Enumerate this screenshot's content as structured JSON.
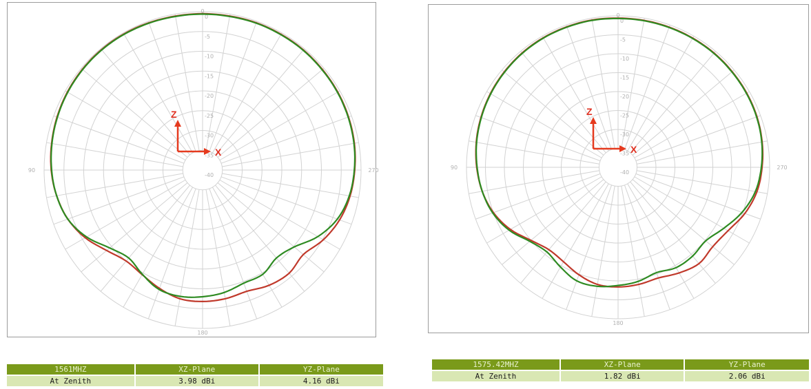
{
  "colors": {
    "xz_curve": "#c0392b",
    "yz_curve": "#2e8b22",
    "grid": "#d2d2d2",
    "axes_arrow": "#e53a1e",
    "table_header": "#7a9a1a",
    "table_row": "#d9e7b3"
  },
  "chart_data": [
    {
      "type": "polar-line",
      "frequency": "1561MHZ",
      "angle_labels": [
        "0",
        "90",
        "180",
        "270"
      ],
      "radial_tick_labels": [
        "0",
        "-5",
        "-10",
        "-15",
        "-20",
        "-25",
        "-30",
        "-35",
        "-40"
      ],
      "rlim": [
        -40,
        0
      ],
      "axis_markers": {
        "vertical": "Z",
        "horizontal": "X"
      },
      "series": [
        {
          "name": "XZ-Plane",
          "color": "#c0392b",
          "theta_deg": [
            0,
            10,
            20,
            30,
            40,
            50,
            60,
            70,
            80,
            90,
            100,
            110,
            120,
            130,
            140,
            150,
            160,
            170,
            180,
            190,
            200,
            210,
            220,
            230,
            240,
            250,
            260,
            270,
            280,
            290,
            300,
            310,
            320,
            330,
            340,
            350
          ],
          "gain_db": [
            -0.5,
            -0.5,
            -0.4,
            -0.3,
            -0.3,
            -0.4,
            -0.6,
            -0.9,
            -1.3,
            -1.8,
            -2.6,
            -3.8,
            -5.8,
            -8.4,
            -10.0,
            -9.5,
            -8.2,
            -7.0,
            -6.8,
            -7.0,
            -7.4,
            -6.4,
            -6.0,
            -6.8,
            -4.8,
            -3.2,
            -2.2,
            -1.6,
            -1.1,
            -0.8,
            -0.6,
            -0.5,
            -0.4,
            -0.4,
            -0.4,
            -0.5
          ]
        },
        {
          "name": "YZ-Plane",
          "color": "#2e8b22",
          "theta_deg": [
            0,
            10,
            20,
            30,
            40,
            50,
            60,
            70,
            80,
            90,
            100,
            110,
            120,
            130,
            140,
            150,
            160,
            170,
            180,
            190,
            200,
            210,
            220,
            230,
            240,
            250,
            260,
            270,
            280,
            290,
            300,
            310,
            320,
            330,
            340,
            350
          ],
          "gain_db": [
            -0.6,
            -0.6,
            -0.5,
            -0.4,
            -0.4,
            -0.5,
            -0.7,
            -1.0,
            -1.4,
            -1.9,
            -2.6,
            -3.8,
            -6.2,
            -9.4,
            -11.0,
            -9.6,
            -7.9,
            -7.6,
            -8.0,
            -8.6,
            -9.6,
            -9.6,
            -11.0,
            -9.8,
            -6.4,
            -3.8,
            -2.4,
            -1.7,
            -1.2,
            -0.9,
            -0.7,
            -0.6,
            -0.5,
            -0.5,
            -0.5,
            -0.6
          ]
        }
      ]
    },
    {
      "type": "polar-line",
      "frequency": "1575.42MHZ",
      "angle_labels": [
        "0",
        "90",
        "180",
        "270"
      ],
      "radial_tick_labels": [
        "0",
        "-5",
        "-10",
        "-15",
        "-20",
        "-25",
        "-30",
        "-35",
        "-40"
      ],
      "rlim": [
        -40,
        0
      ],
      "axis_markers": {
        "vertical": "Z",
        "horizontal": "X"
      },
      "series": [
        {
          "name": "XZ-Plane",
          "color": "#c0392b",
          "theta_deg": [
            0,
            10,
            20,
            30,
            40,
            50,
            60,
            70,
            80,
            90,
            100,
            110,
            120,
            130,
            140,
            150,
            160,
            170,
            180,
            190,
            200,
            210,
            220,
            230,
            240,
            250,
            260,
            270,
            280,
            290,
            300,
            310,
            320,
            330,
            340,
            350
          ],
          "gain_db": [
            -0.6,
            -0.5,
            -0.5,
            -0.5,
            -0.6,
            -0.8,
            -1.1,
            -1.5,
            -2.0,
            -2.7,
            -3.6,
            -5.0,
            -7.2,
            -10.0,
            -11.6,
            -11.2,
            -9.8,
            -8.6,
            -8.4,
            -8.6,
            -8.9,
            -7.8,
            -6.8,
            -7.4,
            -6.5,
            -4.4,
            -2.8,
            -2.0,
            -1.4,
            -1.0,
            -0.8,
            -0.7,
            -0.6,
            -0.6,
            -0.6,
            -0.6
          ]
        },
        {
          "name": "YZ-Plane",
          "color": "#2e8b22",
          "theta_deg": [
            0,
            10,
            20,
            30,
            40,
            50,
            60,
            70,
            80,
            90,
            100,
            110,
            120,
            130,
            140,
            150,
            160,
            170,
            180,
            190,
            200,
            210,
            220,
            230,
            240,
            250,
            260,
            270,
            280,
            290,
            300,
            310,
            320,
            330,
            340,
            350
          ],
          "gain_db": [
            -0.7,
            -0.6,
            -0.6,
            -0.6,
            -0.7,
            -0.9,
            -1.2,
            -1.6,
            -2.1,
            -2.8,
            -3.6,
            -4.8,
            -6.8,
            -9.6,
            -10.8,
            -9.6,
            -8.1,
            -8.1,
            -8.8,
            -9.4,
            -10.4,
            -9.4,
            -9.4,
            -9.8,
            -7.8,
            -5.2,
            -3.2,
            -2.2,
            -1.5,
            -1.1,
            -0.9,
            -0.8,
            -0.7,
            -0.7,
            -0.7,
            -0.7
          ]
        }
      ]
    }
  ],
  "tables": [
    {
      "headers": [
        "1561MHZ",
        "XZ-Plane",
        "YZ-Plane"
      ],
      "row": [
        "At Zenith",
        "3.98 dBi",
        "4.16 dBi"
      ]
    },
    {
      "headers": [
        "1575.42MHZ",
        "XZ-Plane",
        "YZ-Plane"
      ],
      "row": [
        "At Zenith",
        "1.82 dBi",
        "2.06 dBi"
      ]
    }
  ]
}
